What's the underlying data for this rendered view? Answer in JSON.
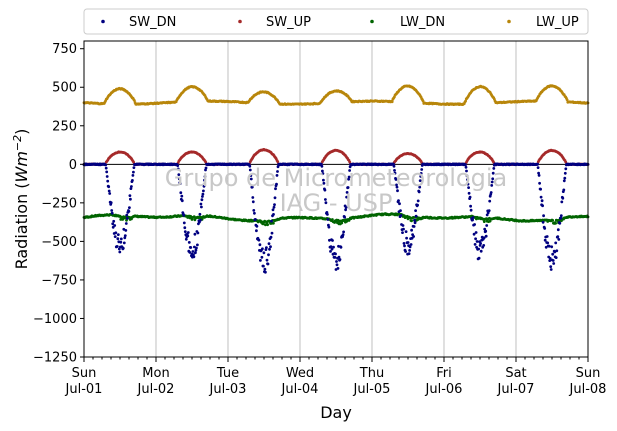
{
  "chart_data": {
    "type": "scatter",
    "xlabel": "Day",
    "ylabel": "Radiation (Wm⁻²)",
    "ylabel_prefix": "Radiation (",
    "ylabel_unit": "Wm",
    "ylabel_exp": "−2",
    "ylabel_suffix": ")",
    "ylim": [
      -1250,
      800
    ],
    "xlim": [
      0,
      7
    ],
    "yticks": [
      750,
      500,
      250,
      0,
      -250,
      -500,
      -750,
      -1000,
      -1250
    ],
    "ytick_labels": [
      "750",
      "500",
      "250",
      "0",
      "−250",
      "−500",
      "−750",
      "−1000",
      "−1250"
    ],
    "xticks": [
      {
        "day": "Sun",
        "date": "Jul-01"
      },
      {
        "day": "Mon",
        "date": "Jul-02"
      },
      {
        "day": "Tue",
        "date": "Jul-03"
      },
      {
        "day": "Wed",
        "date": "Jul-04"
      },
      {
        "day": "Thu",
        "date": "Jul-05"
      },
      {
        "day": "Fri",
        "date": "Jul-06"
      },
      {
        "day": "Sat",
        "date": "Jul-07"
      },
      {
        "day": "Sun",
        "date": "Jul-08"
      }
    ],
    "grid": "vertical",
    "legend_position": "top",
    "watermark": [
      "Grupo de Micrometeorologia",
      "IAG - USP"
    ],
    "series": [
      {
        "name": "SW_DN",
        "color": "#000080",
        "daily_minimum": [
          -600,
          -640,
          -740,
          -700,
          -590,
          -630,
          -710
        ],
        "night_value": 0
      },
      {
        "name": "SW_UP",
        "color": "#a52a2a",
        "daily_maximum": [
          80,
          80,
          95,
          90,
          70,
          80,
          90
        ],
        "night_value": 0
      },
      {
        "name": "LW_DN",
        "color": "#006400",
        "baseline": -345,
        "range": [
          -400,
          -320
        ]
      },
      {
        "name": "LW_UP",
        "color": "#b8860b",
        "daily_maximum": [
          500,
          495,
          475,
          475,
          505,
          510,
          500
        ],
        "night_value": 400
      }
    ]
  }
}
